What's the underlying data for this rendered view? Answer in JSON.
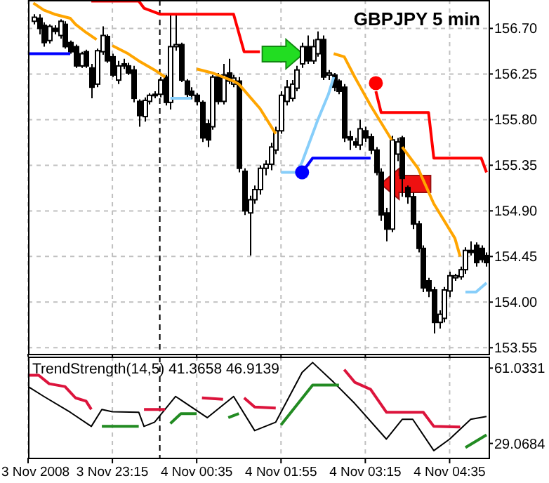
{
  "chart_data": [
    {
      "type": "candlestick",
      "title": "GBPJPY 5 min",
      "tick_labels": "y",
      "grid": true,
      "xlim": [
        "2008-11-03T21:55",
        "2008-11-04T05:12"
      ],
      "ylim": [
        153.49,
        156.98
      ],
      "yticks": [
        153.55,
        {
          "value": 154.0,
          "label": "154.00"
        },
        154.45,
        {
          "value": 154.9,
          "label": "154.90"
        },
        155.35,
        {
          "value": 155.8,
          "label": "155.80"
        },
        156.25,
        {
          "value": 156.7,
          "label": "156.70"
        }
      ],
      "xticks": [
        {
          "value": "2008-11-03T21:55",
          "label": null
        },
        {
          "value": "2008-11-03T23:15",
          "label": null
        },
        {
          "value": "2008-11-04T00:35",
          "label": null
        },
        {
          "value": "2008-11-04T01:55",
          "label": null
        },
        {
          "value": "2008-11-04T03:15",
          "label": null
        },
        {
          "value": "2008-11-04T04:35",
          "label": null
        }
      ],
      "x": [
        "2008-11-03T22:00",
        "2008-11-03T22:05",
        "2008-11-03T22:10",
        "2008-11-03T22:15",
        "2008-11-03T22:20",
        "2008-11-03T22:25",
        "2008-11-03T22:30",
        "2008-11-03T22:35",
        "2008-11-03T22:40",
        "2008-11-03T22:45",
        "2008-11-03T22:50",
        "2008-11-03T22:55",
        "2008-11-03T23:00",
        "2008-11-03T23:05",
        "2008-11-03T23:10",
        "2008-11-03T23:15",
        "2008-11-03T23:20",
        "2008-11-03T23:25",
        "2008-11-03T23:30",
        "2008-11-03T23:35",
        "2008-11-03T23:40",
        "2008-11-03T23:45",
        "2008-11-03T23:50",
        "2008-11-03T23:55",
        "2008-11-04T00:00",
        "2008-11-04T00:05",
        "2008-11-04T00:10",
        "2008-11-04T00:15",
        "2008-11-04T00:20",
        "2008-11-04T00:25",
        "2008-11-04T00:30",
        "2008-11-04T00:35",
        "2008-11-04T00:40",
        "2008-11-04T00:45",
        "2008-11-04T00:50",
        "2008-11-04T00:55",
        "2008-11-04T01:00",
        "2008-11-04T01:05",
        "2008-11-04T01:10",
        "2008-11-04T01:15",
        "2008-11-04T01:20",
        "2008-11-04T01:25",
        "2008-11-04T01:30",
        "2008-11-04T01:35",
        "2008-11-04T01:40",
        "2008-11-04T01:45",
        "2008-11-04T01:50",
        "2008-11-04T01:55",
        "2008-11-04T02:00",
        "2008-11-04T02:05",
        "2008-11-04T02:10",
        "2008-11-04T02:15",
        "2008-11-04T02:20",
        "2008-11-04T02:25",
        "2008-11-04T02:30",
        "2008-11-04T02:35",
        "2008-11-04T02:40",
        "2008-11-04T02:45",
        "2008-11-04T02:50",
        "2008-11-04T02:55",
        "2008-11-04T03:00",
        "2008-11-04T03:05",
        "2008-11-04T03:10",
        "2008-11-04T03:15",
        "2008-11-04T03:20",
        "2008-11-04T03:25",
        "2008-11-04T03:30",
        "2008-11-04T03:35",
        "2008-11-04T03:40",
        "2008-11-04T03:45",
        "2008-11-04T03:50",
        "2008-11-04T03:55",
        "2008-11-04T04:00",
        "2008-11-04T04:05",
        "2008-11-04T04:10",
        "2008-11-04T04:15",
        "2008-11-04T04:20",
        "2008-11-04T04:25",
        "2008-11-04T04:30",
        "2008-11-04T04:35",
        "2008-11-04T04:40",
        "2008-11-04T04:45",
        "2008-11-04T04:50",
        "2008-11-04T04:55",
        "2008-11-04T05:00",
        "2008-11-04T05:05",
        "2008-11-04T05:10"
      ],
      "ohlc": [
        [
          156.77,
          156.84,
          156.74,
          156.81
        ],
        [
          156.8,
          156.84,
          156.64,
          156.7
        ],
        [
          156.73,
          156.76,
          156.52,
          156.56
        ],
        [
          156.58,
          156.74,
          156.55,
          156.72
        ],
        [
          156.7,
          156.73,
          156.64,
          156.67
        ],
        [
          156.63,
          156.79,
          156.6,
          156.77
        ],
        [
          156.74,
          156.77,
          156.5,
          156.52
        ],
        [
          156.56,
          156.58,
          156.45,
          156.47
        ],
        [
          156.52,
          156.54,
          156.31,
          156.33
        ],
        [
          156.33,
          156.47,
          156.31,
          156.45
        ],
        [
          156.47,
          156.49,
          156.31,
          156.33
        ],
        [
          156.31,
          156.35,
          156.01,
          156.12
        ],
        [
          156.15,
          156.5,
          156.12,
          156.48
        ],
        [
          156.47,
          156.72,
          156.44,
          156.63
        ],
        [
          156.62,
          156.64,
          156.36,
          156.38
        ],
        [
          156.42,
          156.45,
          156.22,
          156.24
        ],
        [
          156.19,
          156.38,
          156.15,
          156.33
        ],
        [
          156.35,
          156.4,
          156.3,
          156.33
        ],
        [
          156.33,
          156.36,
          156.24,
          156.26
        ],
        [
          156.29,
          156.33,
          155.97,
          156.01
        ],
        [
          155.98,
          156.0,
          155.73,
          155.84
        ],
        [
          155.83,
          156.02,
          155.78,
          155.99
        ],
        [
          155.98,
          156.06,
          155.95,
          156.04
        ],
        [
          156.04,
          156.08,
          156.01,
          156.05
        ],
        [
          156.05,
          156.22,
          156.02,
          156.19
        ],
        [
          156.22,
          156.24,
          155.94,
          155.97
        ],
        [
          155.97,
          156.84,
          155.9,
          156.52
        ],
        [
          156.52,
          156.84,
          156.48,
          156.54
        ],
        [
          156.54,
          156.56,
          156.17,
          156.19
        ],
        [
          156.18,
          156.2,
          156.02,
          156.05
        ],
        [
          156.08,
          156.12,
          156.0,
          156.04
        ],
        [
          156.04,
          156.06,
          155.94,
          155.98
        ],
        [
          155.97,
          155.99,
          155.58,
          155.62
        ],
        [
          155.76,
          155.8,
          155.53,
          155.6
        ],
        [
          155.73,
          156.24,
          155.7,
          156.22
        ],
        [
          156.22,
          156.26,
          155.95,
          155.98
        ],
        [
          155.98,
          156.35,
          155.95,
          156.24
        ],
        [
          156.26,
          156.4,
          156.15,
          156.18
        ],
        [
          156.15,
          156.24,
          156.12,
          156.21
        ],
        [
          156.18,
          156.22,
          155.28,
          155.32
        ],
        [
          155.29,
          155.32,
          154.86,
          154.9
        ],
        [
          154.88,
          155.05,
          154.46,
          155.01
        ],
        [
          155.01,
          155.15,
          154.97,
          155.11
        ],
        [
          155.11,
          155.35,
          155.06,
          155.32
        ],
        [
          155.32,
          155.4,
          155.25,
          155.36
        ],
        [
          155.36,
          155.57,
          155.3,
          155.53
        ],
        [
          155.5,
          155.73,
          155.46,
          155.69
        ],
        [
          155.69,
          156.08,
          155.66,
          156.04
        ],
        [
          155.98,
          156.19,
          155.94,
          156.12
        ],
        [
          156.01,
          156.19,
          155.98,
          156.15
        ],
        [
          156.11,
          156.33,
          156.08,
          156.29
        ],
        [
          156.35,
          156.56,
          156.31,
          156.52
        ],
        [
          156.52,
          156.63,
          156.35,
          156.38
        ],
        [
          156.38,
          156.59,
          156.35,
          156.52
        ],
        [
          156.45,
          156.67,
          156.42,
          156.59
        ],
        [
          156.59,
          156.63,
          156.19,
          156.22
        ],
        [
          156.24,
          156.29,
          156.19,
          156.26
        ],
        [
          156.24,
          156.26,
          156.08,
          156.12
        ],
        [
          156.18,
          156.2,
          156.05,
          156.08
        ],
        [
          156.12,
          156.15,
          155.58,
          155.62
        ],
        [
          155.63,
          155.69,
          155.5,
          155.6
        ],
        [
          155.58,
          155.62,
          155.52,
          155.55
        ],
        [
          155.55,
          155.8,
          155.5,
          155.71
        ],
        [
          155.69,
          155.73,
          155.58,
          155.62
        ],
        [
          155.63,
          155.66,
          155.46,
          155.5
        ],
        [
          155.5,
          155.53,
          155.25,
          155.28
        ],
        [
          155.28,
          155.32,
          154.8,
          154.86
        ],
        [
          154.88,
          154.93,
          154.6,
          154.72
        ],
        [
          154.72,
          155.64,
          154.69,
          155.6
        ],
        [
          155.46,
          155.62,
          155.39,
          155.58
        ],
        [
          155.62,
          155.64,
          155.04,
          155.22
        ],
        [
          155.13,
          155.15,
          154.97,
          155.04
        ],
        [
          155.04,
          155.08,
          154.72,
          154.77
        ],
        [
          154.77,
          154.8,
          154.49,
          154.53
        ],
        [
          154.53,
          154.56,
          154.1,
          154.14
        ],
        [
          154.21,
          154.24,
          154.05,
          154.11
        ],
        [
          154.12,
          154.15,
          153.69,
          153.8
        ],
        [
          153.8,
          153.92,
          153.74,
          153.88
        ],
        [
          153.84,
          154.15,
          153.8,
          154.12
        ],
        [
          154.11,
          154.3,
          154.05,
          154.26
        ],
        [
          154.24,
          154.28,
          154.21,
          154.26
        ],
        [
          154.25,
          154.35,
          154.22,
          154.32
        ],
        [
          154.32,
          154.54,
          154.28,
          154.51
        ],
        [
          154.51,
          154.6,
          154.46,
          154.49
        ],
        [
          154.56,
          154.59,
          154.35,
          154.39
        ],
        [
          154.53,
          154.56,
          154.39,
          154.42
        ],
        [
          154.46,
          154.49,
          154.35,
          154.39
        ]
      ],
      "series": [
        {
          "type": "line",
          "color": "#ffa500",
          "x": [
            "2008-11-03T22:00",
            "2008-11-03T22:10",
            "2008-11-03T22:20",
            "2008-11-03T22:35",
            "2008-11-03T22:40",
            "2008-11-03T22:50",
            "2008-11-03T23:00",
            "2008-11-03T23:05",
            "2008-11-03T23:15",
            "2008-11-03T23:30",
            "2008-11-03T23:40",
            "2008-11-03T23:55",
            "2008-11-04T00:05",
            "2008-11-04T00:10",
            "2008-11-04T00:35",
            "2008-11-04T00:50",
            "2008-11-04T01:00",
            "2008-11-04T01:10",
            "2008-11-04T01:15",
            "2008-11-04T01:35",
            "2008-11-04T01:50",
            "2008-11-04T01:55",
            "2008-11-04T02:45",
            "2008-11-04T02:55",
            "2008-11-04T03:05",
            "2008-11-04T03:20",
            "2008-11-04T03:40",
            "2008-11-04T03:45",
            "2008-11-04T03:50",
            "2008-11-04T04:05",
            "2008-11-04T04:20",
            "2008-11-04T04:40",
            "2008-11-04T04:45"
          ],
          "values": [
            156.95,
            156.88,
            156.84,
            156.8,
            156.74,
            156.66,
            156.59,
            null,
            156.53,
            156.45,
            156.38,
            156.29,
            156.22,
            null,
            156.3,
            156.26,
            156.22,
            156.18,
            156.15,
            155.91,
            155.66,
            null,
            156.45,
            156.42,
            156.22,
            155.94,
            155.6,
            null,
            155.53,
            155.32,
            154.97,
            154.63,
            154.45
          ]
        },
        {
          "type": "line",
          "color": "#87cefa",
          "x": [
            "2008-11-04T00:10",
            "2008-11-04T00:30",
            "2008-11-04T00:35",
            "2008-11-04T01:55",
            "2008-11-04T02:10",
            "2008-11-04T02:15",
            "2008-11-04T02:30",
            "2008-11-04T02:40",
            "2008-11-04T02:45",
            "2008-11-04T02:50",
            "2008-11-04T04:50",
            "2008-11-04T05:00",
            "2008-11-04T05:10"
          ],
          "values": [
            156.01,
            156.01,
            null,
            155.28,
            155.28,
            155.38,
            155.8,
            156.05,
            156.22,
            null,
            154.1,
            154.1,
            154.19
          ]
        },
        {
          "type": "line",
          "color": "#ff0000",
          "x": [
            "2008-11-03T22:55",
            "2008-11-03T23:40",
            "2008-11-03T23:45",
            "2008-11-04T00:00",
            "2008-11-04T01:10",
            "2008-11-04T01:20",
            "2008-11-04T01:35",
            "2008-11-04T01:40",
            "2008-11-04T03:25",
            "2008-11-04T03:30",
            "2008-11-04T04:15",
            "2008-11-04T04:20",
            "2008-11-04T05:05",
            "2008-11-04T05:10"
          ],
          "values": [
            156.97,
            156.97,
            156.9,
            156.84,
            156.84,
            156.47,
            156.47,
            null,
            156.08,
            155.87,
            155.87,
            155.42,
            155.42,
            155.28
          ]
        },
        {
          "type": "line",
          "color": "#0000ff",
          "x": [
            "2008-11-03T21:55",
            "2008-11-03T22:35",
            "2008-11-03T22:40",
            "2008-11-04T02:15",
            "2008-11-04T02:25",
            "2008-11-04T03:20"
          ],
          "values": [
            156.45,
            156.45,
            null,
            155.28,
            155.42,
            155.42
          ]
        },
        {
          "type": "scatter",
          "marker": "circle",
          "color": "#0000ff",
          "x": [
            "2008-11-04T02:15"
          ],
          "values": [
            155.28
          ]
        },
        {
          "type": "scatter",
          "marker": "circle",
          "color": "#ff0000",
          "x": [
            "2008-11-04T03:25"
          ],
          "values": [
            156.16
          ]
        }
      ],
      "ref_lines": [
        {
          "axis": "x",
          "value": "2008-11-04T00:00",
          "color": "#000000",
          "line_style": "dashed"
        }
      ]
    },
    {
      "type": "line",
      "title": "TrendStrength(14,5) 41.3658 46.9139",
      "grid": "x",
      "xlim": [
        "2008-11-03T21:55",
        "2008-11-04T05:12"
      ],
      "xticks": [
        {
          "value": "2008-11-03T21:55",
          "label": "3 Nov 2008"
        },
        {
          "value": "2008-11-03T23:15",
          "label": "3 Nov 23:15"
        },
        {
          "value": "2008-11-04T00:35",
          "label": "4 Nov 00:35"
        },
        {
          "value": "2008-11-04T01:55",
          "label": "4 Nov 01:55"
        },
        {
          "value": "2008-11-04T03:15",
          "label": "4 Nov 03:15"
        },
        {
          "value": "2008-11-04T04:35",
          "label": "4 Nov 04:35"
        }
      ],
      "ylim": [
        23,
        65.9
      ],
      "yticks": [
        29.0684,
        61.0331
      ],
      "series": [
        {
          "color": "#000000",
          "x": [
            "2008-11-03T21:55",
            "2008-11-03T22:10",
            "2008-11-03T22:35",
            "2008-11-03T22:55",
            "2008-11-03T23:05",
            "2008-11-03T23:15",
            "2008-11-03T23:40",
            "2008-11-03T23:45",
            "2008-11-03T23:55",
            "2008-11-04T00:15",
            "2008-11-04T00:45",
            "2008-11-04T01:10",
            "2008-11-04T01:30",
            "2008-11-04T01:50",
            "2008-11-04T02:15",
            "2008-11-04T02:25",
            "2008-11-04T02:45",
            "2008-11-04T03:05",
            "2008-11-04T03:35",
            "2008-11-04T03:50",
            "2008-11-04T04:00",
            "2008-11-04T04:20",
            "2008-11-04T04:35",
            "2008-11-04T04:55",
            "2008-11-04T05:10"
          ],
          "values": [
            53.2,
            49,
            42.3,
            36.3,
            43.5,
            42.5,
            42.3,
            36.3,
            38.1,
            49,
            40,
            49,
            34.5,
            38.1,
            59.2,
            63.4,
            55,
            46,
            30.9,
            39.3,
            39.3,
            26,
            30.9,
            39.3,
            40.5
          ]
        },
        {
          "color": "#dc143c",
          "x": [
            "2008-11-03T21:55",
            "2008-11-03T22:05",
            "2008-11-03T22:15",
            "2008-11-03T22:30",
            "2008-11-03T22:40",
            "2008-11-03T22:50",
            "2008-11-03T22:55",
            "2008-11-03T23:00",
            "2008-11-03T23:45",
            "2008-11-04T00:05",
            "2008-11-04T00:10",
            "2008-11-04T00:40",
            "2008-11-04T01:00",
            "2008-11-04T01:05",
            "2008-11-04T01:20",
            "2008-11-04T01:30",
            "2008-11-04T01:50",
            "2008-11-04T01:55",
            "2008-11-04T02:55",
            "2008-11-04T03:05",
            "2008-11-04T03:20",
            "2008-11-04T03:35",
            "2008-11-04T04:10",
            "2008-11-04T04:20",
            "2008-11-04T04:45"
          ],
          "values": [
            58,
            58,
            54.4,
            53.2,
            48.4,
            47,
            43.5,
            null,
            43.5,
            43.5,
            null,
            48.4,
            47.8,
            null,
            48.4,
            44.5,
            44.1,
            null,
            60.4,
            55,
            52,
            42.3,
            42.3,
            36.3,
            36
          ]
        },
        {
          "color": "#228b22",
          "x": [
            "2008-11-03T23:05",
            "2008-11-03T23:40",
            "2008-11-03T23:45",
            "2008-11-04T00:10",
            "2008-11-04T00:20",
            "2008-11-04T00:35",
            "2008-11-04T00:40",
            "2008-11-04T01:05",
            "2008-11-04T01:15",
            "2008-11-04T01:25",
            "2008-11-04T01:55",
            "2008-11-04T02:25",
            "2008-11-04T02:50",
            "2008-11-04T02:55",
            "2008-11-04T04:50",
            "2008-11-04T05:10"
          ],
          "values": [
            36.3,
            36.3,
            null,
            37.5,
            41.7,
            41.7,
            null,
            40,
            41.7,
            null,
            36.9,
            53.8,
            53.8,
            null,
            27.3,
            32.7
          ]
        }
      ],
      "ref_lines": [
        {
          "axis": "x",
          "value": "2008-11-04T00:00",
          "color": "#000000",
          "line_style": "dashed"
        }
      ]
    }
  ]
}
